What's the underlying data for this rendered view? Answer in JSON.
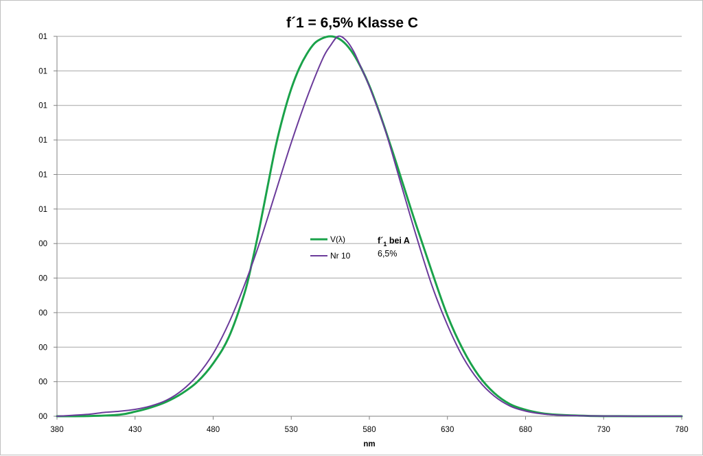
{
  "chart_data": {
    "type": "line",
    "title": "f´1 = 6,5% Klasse C",
    "xlabel": "nm",
    "ylabel": "",
    "xlim": [
      380,
      780
    ],
    "ylim": [
      0,
      1
    ],
    "x_ticks": [
      380,
      430,
      480,
      530,
      580,
      630,
      680,
      730,
      780
    ],
    "y_tick_labels": [
      "00",
      "00",
      "00",
      "00",
      "00",
      "00",
      "01",
      "01",
      "01",
      "01",
      "01",
      "01"
    ],
    "grid": "horizontal",
    "legend_position": "center",
    "colors": {
      "v_lambda": "#1aa24a",
      "nr10": "#6a3a9a",
      "grid": "#a6a6a6"
    },
    "series": [
      {
        "name": "V(λ)",
        "x": [
          380,
          400,
          420,
          430,
          440,
          450,
          460,
          470,
          480,
          490,
          500,
          505,
          510,
          515,
          520,
          525,
          530,
          535,
          540,
          545,
          550,
          555,
          560,
          565,
          570,
          575,
          580,
          585,
          590,
          595,
          600,
          610,
          620,
          630,
          640,
          650,
          660,
          670,
          680,
          690,
          700,
          720,
          740,
          760,
          780
        ],
        "y": [
          0.0,
          0.0004,
          0.004,
          0.012,
          0.023,
          0.038,
          0.06,
          0.091,
          0.139,
          0.208,
          0.323,
          0.407,
          0.503,
          0.608,
          0.71,
          0.793,
          0.862,
          0.915,
          0.954,
          0.982,
          0.995,
          1.0,
          0.995,
          0.979,
          0.952,
          0.915,
          0.87,
          0.816,
          0.757,
          0.695,
          0.631,
          0.503,
          0.381,
          0.265,
          0.175,
          0.107,
          0.061,
          0.032,
          0.017,
          0.0082,
          0.0041,
          0.001,
          0.0002,
          0.0001,
          0.0
        ]
      },
      {
        "name": "Nr 10",
        "x": [
          380,
          400,
          410,
          420,
          430,
          440,
          450,
          460,
          470,
          480,
          490,
          500,
          510,
          520,
          530,
          540,
          550,
          555,
          560,
          565,
          570,
          575,
          580,
          590,
          600,
          610,
          620,
          630,
          640,
          650,
          660,
          670,
          680,
          690,
          700,
          720,
          740,
          760,
          780
        ],
        "y": [
          0.0,
          0.005,
          0.01,
          0.013,
          0.018,
          0.027,
          0.042,
          0.068,
          0.108,
          0.165,
          0.245,
          0.345,
          0.46,
          0.59,
          0.72,
          0.838,
          0.94,
          0.975,
          1.0,
          0.99,
          0.96,
          0.915,
          0.868,
          0.755,
          0.615,
          0.475,
          0.345,
          0.24,
          0.155,
          0.094,
          0.053,
          0.027,
          0.0135,
          0.0065,
          0.0032,
          0.001,
          0.0003,
          0.0001,
          0.0
        ]
      }
    ],
    "annotation": {
      "line1_main": "f´",
      "line1_sub": "1",
      "line1_rest": " bei A",
      "line2": "6,5%"
    }
  }
}
